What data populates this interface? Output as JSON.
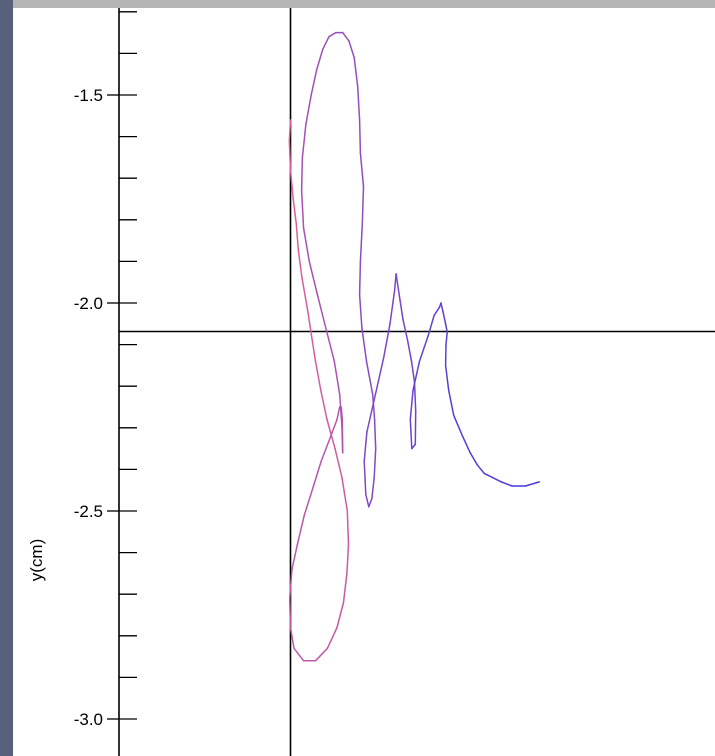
{
  "colors": {
    "frame_top": "#b4b4b4",
    "frame_left": "#57607a",
    "background": "#ffffff",
    "axis": "#000000",
    "trace_start": "#e0609a",
    "trace_end": "#4a3cdc"
  },
  "chart_data": {
    "type": "line",
    "title": "",
    "xlabel": "",
    "ylabel": "y(cm)",
    "grid": false,
    "legend": "none",
    "y_tick_labels": [
      "-1.5",
      "-2.0",
      "-2.5",
      "-3.0"
    ],
    "ylim": [
      -3.06,
      -1.28
    ],
    "xlim": [
      -0.24,
      0.69
    ],
    "series": [
      {
        "color_gradient": [
          "#e0609a",
          "#4a3cdc"
        ],
        "x": [
          0.0,
          -0.003,
          -0.0,
          0.007,
          0.015,
          0.02,
          0.03,
          0.045,
          0.055,
          0.065,
          0.079,
          0.095,
          0.116,
          0.134,
          0.148,
          0.151,
          0.147,
          0.138,
          0.121,
          0.096,
          0.065,
          0.034,
          0.009,
          0.0,
          -0.002,
          0.004,
          0.018,
          0.036,
          0.06,
          0.08,
          0.105,
          0.121,
          0.128,
          0.132,
          0.135,
          0.136,
          0.134,
          0.128,
          0.114,
          0.092,
          0.07,
          0.049,
          0.034,
          0.029,
          0.031,
          0.04,
          0.054,
          0.068,
          0.084,
          0.1,
          0.118,
          0.136,
          0.152,
          0.166,
          0.175,
          0.18,
          0.182,
          0.19,
          0.187,
          0.182,
          0.18,
          0.186,
          0.198,
          0.214,
          0.219,
          0.222,
          0.218,
          0.212,
          0.204,
          0.196,
          0.192,
          0.199,
          0.221,
          0.243,
          0.259,
          0.271,
          0.275,
          0.283,
          0.293,
          0.305,
          0.315,
          0.323,
          0.326,
          0.325,
          0.316,
          0.312,
          0.319,
          0.336,
          0.358,
          0.374,
          0.388,
          0.392,
          0.397,
          0.404,
          0.408,
          0.405,
          0.404,
          0.412,
          0.425,
          0.448,
          0.468,
          0.487,
          0.505,
          0.527,
          0.549,
          0.577,
          0.612,
          0.648
        ],
        "y": [
          -1.56,
          -1.61,
          -1.68,
          -1.75,
          -1.81,
          -1.87,
          -1.94,
          -2.02,
          -2.08,
          -2.14,
          -2.21,
          -2.28,
          -2.35,
          -2.42,
          -2.5,
          -2.58,
          -2.65,
          -2.72,
          -2.78,
          -2.83,
          -2.86,
          -2.86,
          -2.83,
          -2.78,
          -2.71,
          -2.64,
          -2.58,
          -2.51,
          -2.44,
          -2.38,
          -2.32,
          -2.28,
          -2.25,
          -2.25,
          -2.28,
          -2.36,
          -2.3,
          -2.22,
          -2.14,
          -2.06,
          -1.98,
          -1.9,
          -1.82,
          -1.73,
          -1.65,
          -1.57,
          -1.5,
          -1.44,
          -1.39,
          -1.36,
          -1.35,
          -1.35,
          -1.37,
          -1.41,
          -1.48,
          -1.56,
          -1.64,
          -1.72,
          -1.81,
          -1.9,
          -1.98,
          -2.06,
          -2.14,
          -2.22,
          -2.28,
          -2.35,
          -2.42,
          -2.47,
          -2.49,
          -2.46,
          -2.38,
          -2.31,
          -2.22,
          -2.13,
          -2.05,
          -1.97,
          -1.93,
          -1.98,
          -2.04,
          -2.09,
          -2.14,
          -2.19,
          -2.26,
          -2.34,
          -2.35,
          -2.28,
          -2.21,
          -2.14,
          -2.08,
          -2.03,
          -2.01,
          -2.0,
          -2.02,
          -2.05,
          -2.07,
          -2.1,
          -2.15,
          -2.21,
          -2.27,
          -2.32,
          -2.36,
          -2.39,
          -2.41,
          -2.42,
          -2.43,
          -2.44,
          -2.44,
          -2.43
        ]
      }
    ]
  }
}
